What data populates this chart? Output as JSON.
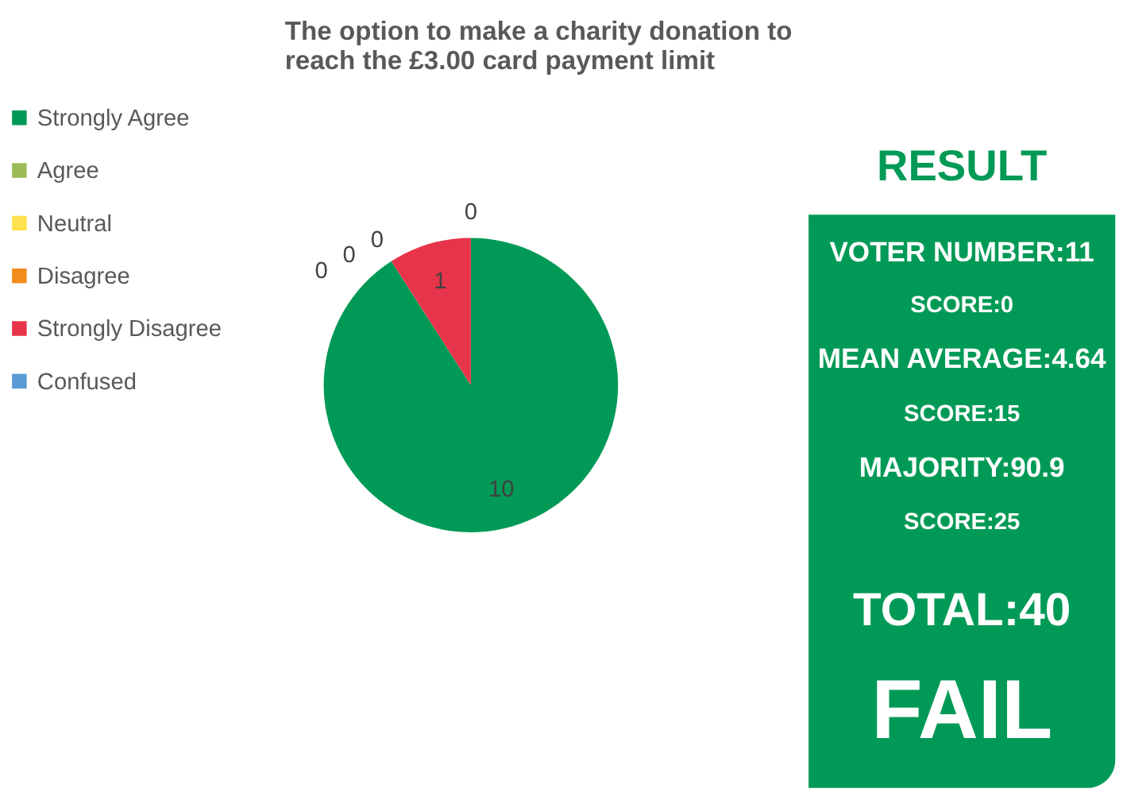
{
  "chart_data": [
    {
      "type": "pie",
      "title": "The option to make a charity donation to\nreach the £3.00 card payment limit",
      "categories": [
        "Strongly Agree",
        "Agree",
        "Neutral",
        "Disagree",
        "Strongly Disagree",
        "Confused"
      ],
      "values": [
        10,
        0,
        0,
        0,
        1,
        0
      ],
      "colors": [
        "#009a56",
        "#9bbb59",
        "#ffe14d",
        "#f28c1c",
        "#e8344a",
        "#5b9bd5"
      ],
      "value_labels": [
        "10",
        "0",
        "0",
        "0",
        "1",
        "0"
      ],
      "legend": "left"
    },
    {
      "type": "other",
      "title": "RESULT",
      "color": "#009a56",
      "annotations": [
        "VOTER NUMBER:11",
        "SCORE:0",
        "MEAN AVERAGE:4.64",
        "SCORE:15",
        "MAJORITY:90.9",
        "SCORE:25",
        "TOTAL:40",
        "FAIL"
      ]
    }
  ]
}
